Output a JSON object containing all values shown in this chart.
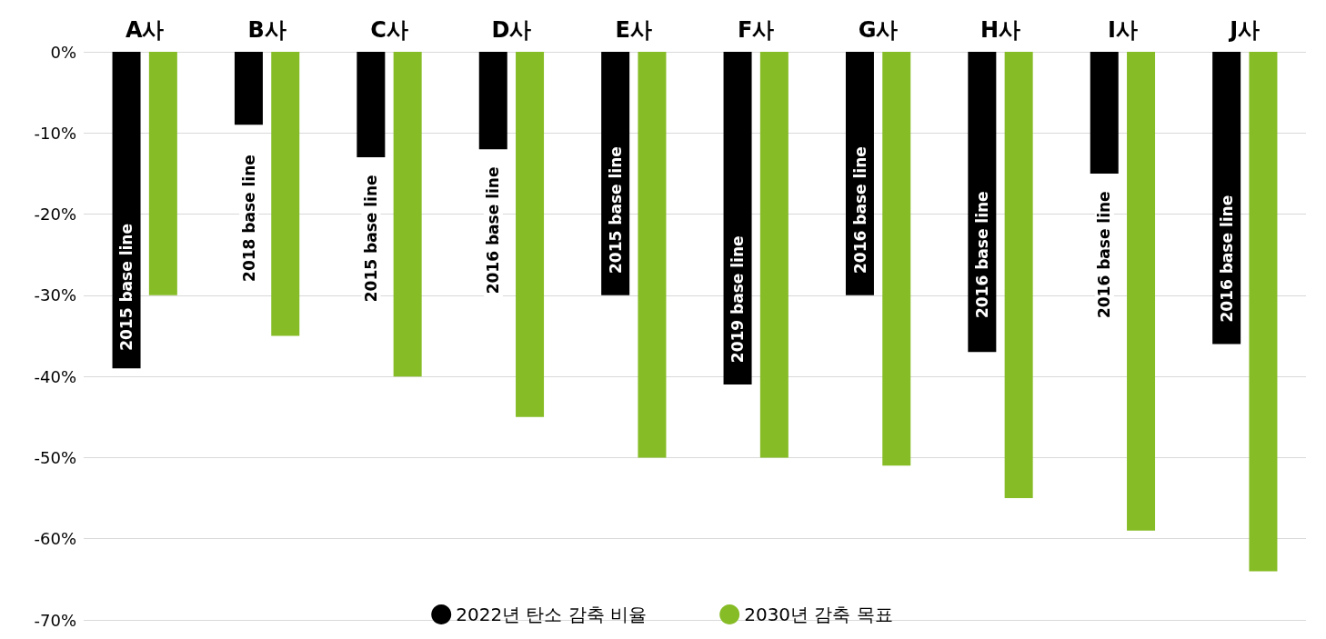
{
  "chart_data": {
    "type": "bar",
    "categories": [
      "A사",
      "B사",
      "C사",
      "D사",
      "E사",
      "F사",
      "G사",
      "H사",
      "I사",
      "J사"
    ],
    "series": [
      {
        "name": "2022년 탄소 감축 비율",
        "color": "#000000",
        "values": [
          -39,
          -9,
          -13,
          -12,
          -30,
          -41,
          -30,
          -37,
          -15,
          -36
        ]
      },
      {
        "name": "2030년 감축 목표",
        "color": "#86bc25",
        "values": [
          -30,
          -35,
          -40,
          -45,
          -50,
          -50,
          -51,
          -55,
          -59,
          -64
        ]
      }
    ],
    "ylim": [
      -70,
      0
    ],
    "yticks": [
      {
        "value": -70,
        "label": "-70%"
      },
      {
        "value": -60,
        "label": "-60%"
      },
      {
        "value": -50,
        "label": "-50%"
      },
      {
        "value": -40,
        "label": "-40%"
      },
      {
        "value": -30,
        "label": "-30%"
      },
      {
        "value": -20,
        "label": "-20%"
      },
      {
        "value": -10,
        "label": "-10%"
      },
      {
        "value": 0,
        "label": "0%"
      }
    ],
    "grid": "y",
    "legend": "bottom",
    "annotations": [
      {
        "text": "2015 base line",
        "x": "A사",
        "y": -29
      },
      {
        "text": "2018 base line",
        "x": "B사",
        "y": -20.5
      },
      {
        "text": "2015 base line",
        "x": "C사",
        "y": -23
      },
      {
        "text": "2016 base line",
        "x": "D사",
        "y": -22
      },
      {
        "text": "2015 base line",
        "x": "E사",
        "y": -19.5
      },
      {
        "text": "2019 base line",
        "x": "F사",
        "y": -30.5
      },
      {
        "text": "2016 base line",
        "x": "G사",
        "y": -19.5
      },
      {
        "text": "2016 base line",
        "x": "H사",
        "y": -25
      },
      {
        "text": "2016 base line",
        "x": "I사",
        "y": -25
      },
      {
        "text": "2016 base line",
        "x": "J사",
        "y": -25.5
      }
    ]
  }
}
